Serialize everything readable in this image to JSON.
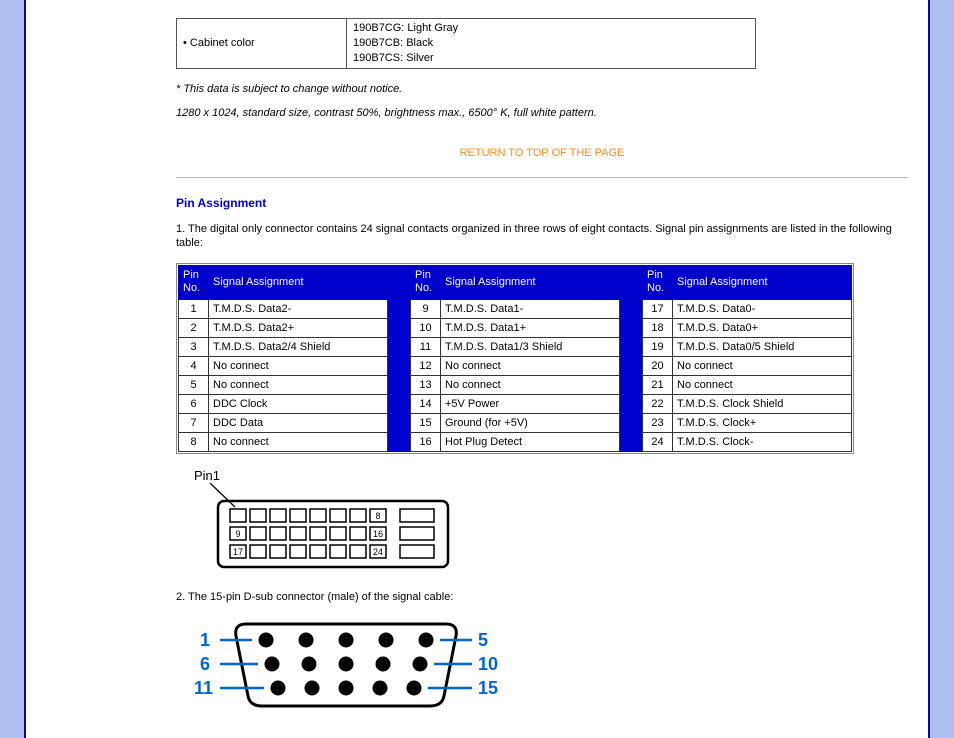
{
  "cabinet": {
    "label": "• Cabinet color",
    "values": [
      "190B7CG: Light Gray",
      "190B7CB: Black",
      "190B7CS: Silver"
    ]
  },
  "footnote1": "* This data is subject to change without notice.",
  "footnote2": "1280 x 1024, standard size, contrast 50%, brightness max., 6500° K, full white pattern.",
  "return_link": "RETURN TO TOP OF THE PAGE",
  "section_title": "Pin Assignment",
  "intro_text": "1. The digital only connector contains 24 signal contacts organized in three rows of eight contacts. Signal pin assignments are listed in the following table:",
  "header_pin": "Pin No.",
  "header_sig": "Signal Assignment",
  "colors": {
    "table_header_bg": "#0000cc",
    "link_color": "#ff8c1a",
    "section_title_color": "#0000d0",
    "frame_band": "#aec0f2",
    "frame_border": "#0a0a8a",
    "dsub_label_color": "#0066cc"
  },
  "pins_col1": [
    {
      "n": "1",
      "s": "T.M.D.S. Data2-"
    },
    {
      "n": "2",
      "s": "T.M.D.S. Data2+"
    },
    {
      "n": "3",
      "s": "T.M.D.S. Data2/4 Shield"
    },
    {
      "n": "4",
      "s": "No connect"
    },
    {
      "n": "5",
      "s": "No connect"
    },
    {
      "n": "6",
      "s": "DDC Clock"
    },
    {
      "n": "7",
      "s": "DDC Data"
    },
    {
      "n": "8",
      "s": "No connect"
    }
  ],
  "pins_col2": [
    {
      "n": "9",
      "s": "T.M.D.S. Data1-"
    },
    {
      "n": "10",
      "s": "T.M.D.S. Data1+"
    },
    {
      "n": "11",
      "s": "T.M.D.S. Data1/3 Shield"
    },
    {
      "n": "12",
      "s": "No connect"
    },
    {
      "n": "13",
      "s": "No connect"
    },
    {
      "n": "14",
      "s": "+5V Power"
    },
    {
      "n": "15",
      "s": "Ground (for +5V)"
    },
    {
      "n": "16",
      "s": "Hot Plug Detect"
    }
  ],
  "pins_col3": [
    {
      "n": "17",
      "s": "T.M.D.S. Data0-"
    },
    {
      "n": "18",
      "s": "T.M.D.S. Data0+"
    },
    {
      "n": "19",
      "s": "T.M.D.S. Data0/5 Shield"
    },
    {
      "n": "20",
      "s": "No connect"
    },
    {
      "n": "21",
      "s": "No connect"
    },
    {
      "n": "22",
      "s": "T.M.D.S. Clock Shield"
    },
    {
      "n": "23",
      "s": "T.M.D.S. Clock+"
    },
    {
      "n": "24",
      "s": "T.M.D.S. Clock-"
    }
  ],
  "dvi_diagram": {
    "pin1_label": "Pin1",
    "row_end_labels": [
      "8",
      "16",
      "24"
    ],
    "row_start_labels": [
      "",
      "9",
      "17"
    ]
  },
  "text_after_dvi": "2. The 15-pin D-sub connector (male) of the signal cable:",
  "dsub_labels": {
    "left": [
      "1",
      "6",
      "11"
    ],
    "right": [
      "5",
      "10",
      "15"
    ]
  }
}
